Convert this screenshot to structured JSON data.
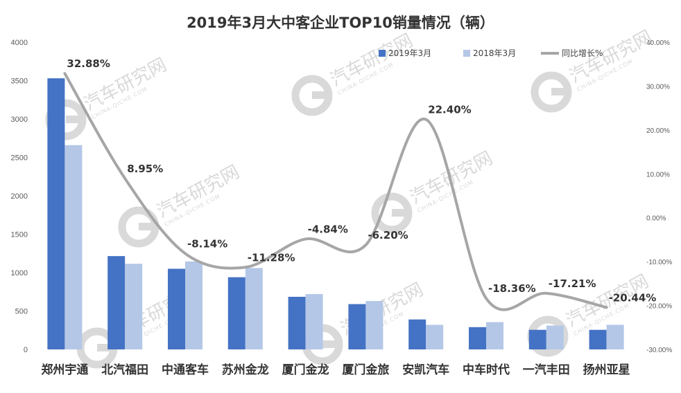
{
  "chart_data": {
    "type": "bar",
    "title": "2019年3月大中客企业TOP10销量情况（辆）",
    "categories": [
      "郑州宇通",
      "北汽福田",
      "中通客车",
      "苏州金龙",
      "厦门金龙",
      "厦门金旅",
      "安凯汽车",
      "中车时代",
      "一汽丰田",
      "扬州亚星"
    ],
    "series": [
      {
        "name": "2019年3月",
        "type": "bar",
        "axis": "left",
        "color": "#4472c4",
        "values": [
          3530,
          1215,
          1050,
          940,
          685,
          590,
          390,
          290,
          255,
          255
        ]
      },
      {
        "name": "2018年3月",
        "type": "bar",
        "axis": "left",
        "color": "#b4c7e7",
        "values": [
          2660,
          1115,
          1145,
          1060,
          720,
          630,
          320,
          355,
          310,
          320
        ]
      },
      {
        "name": "同比增长%",
        "type": "line",
        "axis": "right",
        "color": "#a6a6a6",
        "values": [
          32.88,
          8.95,
          -8.14,
          -11.28,
          -4.84,
          -6.2,
          22.4,
          -18.36,
          -17.21,
          -20.44
        ],
        "labels": [
          "32.88%",
          "8.95%",
          "-8.14%",
          "-11.28%",
          "-4.84%",
          "-6.20%",
          "22.40%",
          "-18.36%",
          "-17.21%",
          "-20.44%"
        ]
      }
    ],
    "y_left": {
      "min": 0,
      "max": 4000,
      "ticks": [
        "0",
        "500",
        "1000",
        "1500",
        "2000",
        "2500",
        "3000",
        "3500",
        "4000"
      ]
    },
    "y_right": {
      "min": -30,
      "max": 40,
      "ticks": [
        "-30.00%",
        "-20.00%",
        "-10.00%",
        "0.00%",
        "10.00%",
        "20.00%",
        "30.00%",
        "40.00%"
      ]
    },
    "grid": false,
    "legend": "top-right"
  },
  "watermark": {
    "text": "汽车研究网",
    "subtext": "CHINA-QICHE.COM",
    "color": "#d9d9d9"
  }
}
